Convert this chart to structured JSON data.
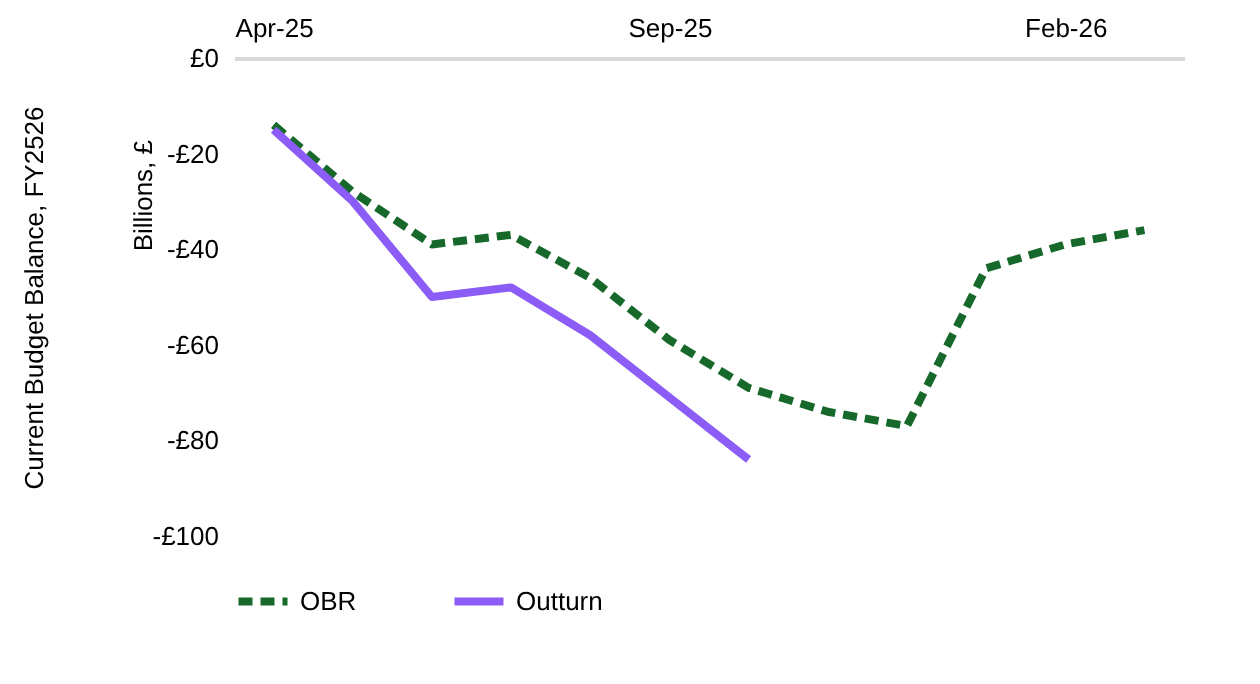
{
  "chart_data": {
    "type": "line",
    "ylabel": "Current Budget Balance, FY2526",
    "annotations": [
      "Billions, £"
    ],
    "categories": [
      "Apr-25",
      null,
      null,
      null,
      null,
      "Sep-25",
      null,
      null,
      null,
      null,
      "Feb-26",
      null
    ],
    "series": [
      {
        "name": "OBR",
        "color": "#17692b",
        "line_style": "dashed",
        "values": [
          -14,
          -28,
          -39,
          -37,
          -46,
          -59,
          -69,
          -74,
          -77,
          -44,
          -39,
          -36
        ]
      },
      {
        "name": "Outturn",
        "color": "#8b5cf6",
        "line_style": "solid",
        "values": [
          -15,
          -30,
          -50,
          -48,
          -58,
          -71,
          -84,
          null,
          null,
          null,
          null,
          null
        ]
      }
    ],
    "ylim": [
      -100,
      0
    ],
    "yticks": [
      {
        "value": -100,
        "label": "-£100"
      },
      {
        "value": -80,
        "label": "-£80"
      },
      {
        "value": -60,
        "label": "-£60"
      },
      {
        "value": -40,
        "label": "-£40"
      },
      {
        "value": -20,
        "label": "-£20"
      },
      {
        "value": 0,
        "label": "£0"
      }
    ],
    "grid": false,
    "legend": "bottom",
    "marker": "none"
  }
}
